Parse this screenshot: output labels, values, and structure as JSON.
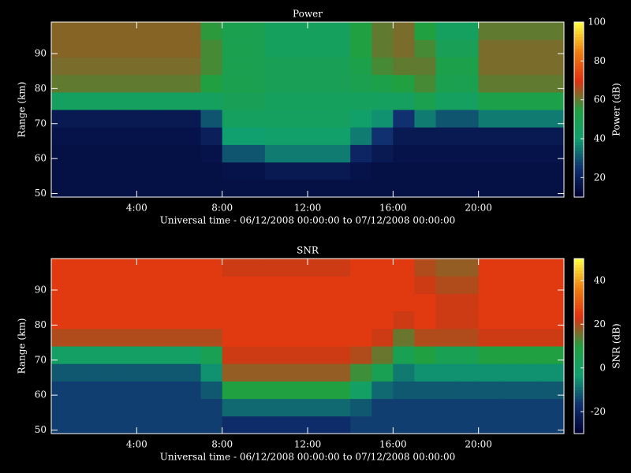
{
  "chart_data": [
    {
      "type": "heatmap",
      "title": "Power",
      "xlabel": "Universal time - 06/12/2008 00:00:00 to 07/12/2008 00:00:00",
      "ylabel": "Range (km)",
      "colorbar_label": "Power (dB)",
      "xlim": [
        0,
        24
      ],
      "xticks": [
        {
          "value": 4,
          "label": "4:00"
        },
        {
          "value": 8,
          "label": "8:00"
        },
        {
          "value": 12,
          "label": "12:00"
        },
        {
          "value": 16,
          "label": "16:00"
        },
        {
          "value": 20,
          "label": "20:00"
        }
      ],
      "ylim": [
        49,
        99
      ],
      "yticks": [
        50,
        60,
        70,
        80,
        90
      ],
      "clim": [
        10,
        100
      ],
      "cticks": [
        20,
        40,
        60,
        80,
        100
      ],
      "colormap": [
        "#000030",
        "#103070",
        "#10a070",
        "#20a040",
        "#e03010",
        "#f08010",
        "#ffff40"
      ],
      "xbins": [
        0,
        1,
        2,
        3,
        4,
        5,
        6,
        7,
        8,
        9,
        10,
        11,
        12,
        13,
        14,
        15,
        16,
        17,
        18,
        19,
        20,
        21,
        22,
        23,
        24
      ],
      "ybins": [
        49,
        54,
        59,
        64,
        69,
        74,
        79,
        84,
        89,
        94,
        99
      ],
      "z": [
        [
          15,
          15,
          15,
          16,
          18,
          45,
          60,
          62,
          63,
          63
        ],
        [
          15,
          15,
          15,
          16,
          18,
          45,
          60,
          62,
          63,
          63
        ],
        [
          15,
          15,
          15,
          16,
          18,
          45,
          60,
          62,
          63,
          63
        ],
        [
          15,
          15,
          15,
          16,
          18,
          45,
          60,
          62,
          63,
          63
        ],
        [
          15,
          15,
          15,
          16,
          18,
          45,
          60,
          62,
          63,
          63
        ],
        [
          15,
          15,
          15,
          16,
          18,
          45,
          60,
          62,
          63,
          63
        ],
        [
          15,
          15,
          15,
          16,
          18,
          45,
          60,
          62,
          63,
          63
        ],
        [
          15,
          15,
          16,
          20,
          30,
          45,
          55,
          58,
          58,
          56
        ],
        [
          15,
          16,
          30,
          40,
          45,
          48,
          50,
          50,
          50,
          50
        ],
        [
          15,
          16,
          30,
          40,
          45,
          48,
          50,
          50,
          50,
          50
        ],
        [
          15,
          18,
          35,
          42,
          45,
          46,
          48,
          48,
          46,
          46
        ],
        [
          15,
          18,
          35,
          42,
          45,
          46,
          48,
          48,
          46,
          46
        ],
        [
          15,
          18,
          35,
          42,
          45,
          46,
          48,
          48,
          46,
          46
        ],
        [
          15,
          18,
          35,
          42,
          45,
          46,
          48,
          48,
          46,
          46
        ],
        [
          15,
          16,
          22,
          35,
          42,
          46,
          50,
          52,
          55,
          55
        ],
        [
          15,
          15,
          18,
          25,
          38,
          45,
          52,
          58,
          60,
          60
        ],
        [
          15,
          15,
          16,
          18,
          25,
          45,
          55,
          60,
          62,
          62
        ],
        [
          15,
          15,
          16,
          18,
          35,
          50,
          58,
          60,
          58,
          55
        ],
        [
          15,
          15,
          16,
          18,
          30,
          45,
          50,
          52,
          48,
          45
        ],
        [
          15,
          15,
          16,
          18,
          30,
          45,
          50,
          52,
          48,
          45
        ],
        [
          15,
          15,
          16,
          18,
          35,
          52,
          60,
          62,
          62,
          60
        ],
        [
          15,
          15,
          16,
          18,
          35,
          52,
          60,
          62,
          62,
          60
        ],
        [
          15,
          15,
          16,
          18,
          35,
          52,
          60,
          62,
          62,
          60
        ],
        [
          15,
          15,
          16,
          18,
          35,
          52,
          60,
          62,
          62,
          60
        ]
      ]
    },
    {
      "type": "heatmap",
      "title": "SNR",
      "xlabel": "Universal time - 06/12/2008 00:00:00 to 07/12/2008 00:00:00",
      "ylabel": "Range (km)",
      "colorbar_label": "SNR (dB)",
      "xlim": [
        0,
        24
      ],
      "xticks": [
        {
          "value": 4,
          "label": "4:00"
        },
        {
          "value": 8,
          "label": "8:00"
        },
        {
          "value": 12,
          "label": "12:00"
        },
        {
          "value": 16,
          "label": "16:00"
        },
        {
          "value": 20,
          "label": "20:00"
        }
      ],
      "ylim": [
        49,
        99
      ],
      "yticks": [
        50,
        60,
        70,
        80,
        90
      ],
      "clim": [
        -30,
        50
      ],
      "cticks": [
        -20,
        0,
        20,
        40
      ],
      "colormap": [
        "#000030",
        "#103070",
        "#10a070",
        "#20a040",
        "#e03010",
        "#f08010",
        "#ffff40"
      ],
      "xbins": [
        0,
        1,
        2,
        3,
        4,
        5,
        6,
        7,
        8,
        9,
        10,
        11,
        12,
        13,
        14,
        15,
        16,
        17,
        18,
        19,
        20,
        21,
        22,
        23,
        24
      ],
      "ybins": [
        49,
        54,
        59,
        64,
        69,
        74,
        79,
        84,
        89,
        94,
        99
      ],
      "z": [
        [
          -15,
          -15,
          -15,
          -12,
          0,
          20,
          25,
          25,
          25,
          25
        ],
        [
          -15,
          -15,
          -15,
          -12,
          0,
          20,
          25,
          25,
          25,
          25
        ],
        [
          -15,
          -15,
          -15,
          -12,
          0,
          20,
          25,
          25,
          25,
          25
        ],
        [
          -15,
          -15,
          -15,
          -12,
          0,
          20,
          25,
          25,
          25,
          25
        ],
        [
          -15,
          -15,
          -15,
          -12,
          0,
          20,
          25,
          25,
          25,
          25
        ],
        [
          -15,
          -15,
          -15,
          -12,
          0,
          20,
          25,
          25,
          25,
          25
        ],
        [
          -15,
          -15,
          -15,
          -12,
          0,
          20,
          25,
          25,
          25,
          25
        ],
        [
          -15,
          -15,
          -12,
          -5,
          5,
          20,
          25,
          25,
          25,
          25
        ],
        [
          -18,
          -10,
          10,
          18,
          22,
          25,
          25,
          25,
          25,
          22
        ],
        [
          -18,
          -10,
          10,
          18,
          22,
          25,
          25,
          25,
          25,
          22
        ],
        [
          -18,
          -10,
          10,
          18,
          22,
          25,
          25,
          25,
          25,
          22
        ],
        [
          -18,
          -10,
          10,
          18,
          22,
          25,
          25,
          25,
          25,
          22
        ],
        [
          -18,
          -10,
          10,
          18,
          22,
          25,
          25,
          25,
          25,
          22
        ],
        [
          -18,
          -10,
          10,
          18,
          22,
          25,
          25,
          25,
          25,
          22
        ],
        [
          -15,
          -12,
          0,
          12,
          20,
          25,
          25,
          25,
          25,
          25
        ],
        [
          -15,
          -15,
          -10,
          5,
          15,
          22,
          25,
          25,
          25,
          25
        ],
        [
          -15,
          -15,
          -12,
          -8,
          5,
          15,
          22,
          25,
          25,
          25
        ],
        [
          -15,
          -15,
          -12,
          -5,
          10,
          20,
          25,
          25,
          22,
          20
        ],
        [
          -15,
          -15,
          -12,
          -5,
          5,
          20,
          22,
          22,
          20,
          18
        ],
        [
          -15,
          -15,
          -12,
          -5,
          5,
          20,
          22,
          22,
          20,
          18
        ],
        [
          -15,
          -15,
          -12,
          -5,
          10,
          22,
          25,
          25,
          25,
          25
        ],
        [
          -15,
          -15,
          -12,
          -5,
          10,
          22,
          25,
          25,
          25,
          25
        ],
        [
          -15,
          -15,
          -12,
          -5,
          10,
          22,
          25,
          25,
          25,
          25
        ],
        [
          -15,
          -15,
          -12,
          -5,
          10,
          22,
          25,
          25,
          25,
          25
        ]
      ]
    }
  ]
}
